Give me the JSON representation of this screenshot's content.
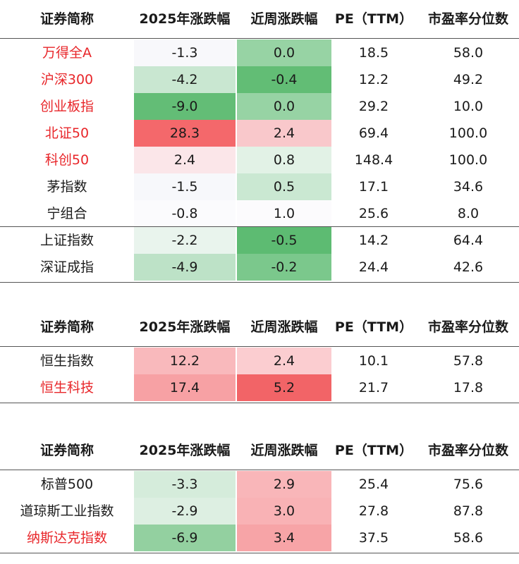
{
  "headers": [
    "证券简称",
    "2025年涨跌幅",
    "近周涨跌幅",
    "PE（TTM）",
    "市盈率分位数"
  ],
  "colors": {
    "red_text": "#e8262a",
    "neg_max": "#5dbb72",
    "pos_max": "#f26467",
    "neutral": "#fbfbfd"
  },
  "tables": [
    {
      "rows": [
        {
          "name": "万得全A",
          "red": true,
          "ytd": "-1.3",
          "wk": "0.0",
          "pe": "18.5",
          "pct": "58.0",
          "ytd_bg": "#f8f8fb",
          "wk_bg": "#97d3a4"
        },
        {
          "name": "沪深300",
          "red": true,
          "ytd": "-4.2",
          "wk": "-0.4",
          "pe": "12.2",
          "pct": "49.2",
          "ytd_bg": "#c9e7d1",
          "wk_bg": "#62bd75"
        },
        {
          "name": "创业板指",
          "red": true,
          "ytd": "-9.0",
          "wk": "0.0",
          "pe": "29.2",
          "pct": "10.0",
          "ytd_bg": "#63bd76",
          "wk_bg": "#97d3a4"
        },
        {
          "name": "北证50",
          "red": true,
          "ytd": "28.3",
          "wk": "2.4",
          "pe": "69.4",
          "pct": "100.0",
          "ytd_bg": "#f4686b",
          "wk_bg": "#f9c8cb"
        },
        {
          "name": "科创50",
          "red": true,
          "ytd": "2.4",
          "wk": "0.8",
          "pe": "148.4",
          "pct": "100.0",
          "ytd_bg": "#fbe6e9",
          "wk_bg": "#e2f2e6"
        },
        {
          "name": "茅指数",
          "red": false,
          "ytd": "-1.5",
          "wk": "0.5",
          "pe": "17.1",
          "pct": "34.6",
          "ytd_bg": "#f7f8fb",
          "wk_bg": "#cae8d2"
        },
        {
          "name": "宁组合",
          "red": false,
          "ytd": "-0.8",
          "wk": "1.0",
          "pe": "25.6",
          "pct": "8.0",
          "ytd_bg": "#fbfbfd",
          "wk_bg": "#fcfbfd"
        },
        {
          "name": "上证指数",
          "red": false,
          "ytd": "-2.2",
          "wk": "-0.5",
          "pe": "14.2",
          "pct": "64.4",
          "ytd_bg": "#e9f4ed",
          "wk_bg": "#5dbb72",
          "sep": true
        },
        {
          "name": "深证成指",
          "red": false,
          "ytd": "-4.9",
          "wk": "-0.2",
          "pe": "24.4",
          "pct": "42.6",
          "ytd_bg": "#bde2c7",
          "wk_bg": "#7bc88c"
        }
      ]
    },
    {
      "rows": [
        {
          "name": "恒生指数",
          "red": false,
          "ytd": "12.2",
          "wk": "2.4",
          "pe": "10.1",
          "pct": "57.8",
          "ytd_bg": "#f9b9bc",
          "wk_bg": "#fbcdd0"
        },
        {
          "name": "恒生科技",
          "red": true,
          "ytd": "17.4",
          "wk": "5.2",
          "pe": "21.7",
          "pct": "17.8",
          "ytd_bg": "#f7a1a4",
          "wk_bg": "#f26467"
        }
      ]
    },
    {
      "rows": [
        {
          "name": "标普500",
          "red": false,
          "ytd": "-3.3",
          "wk": "2.9",
          "pe": "25.4",
          "pct": "75.6",
          "ytd_bg": "#d5ecdb",
          "wk_bg": "#f9b6b9"
        },
        {
          "name": "道琼斯工业指数",
          "red": false,
          "ytd": "-2.9",
          "wk": "3.0",
          "pe": "27.8",
          "pct": "87.8",
          "ytd_bg": "#ddefe2",
          "wk_bg": "#f9b2b5"
        },
        {
          "name": "纳斯达克指数",
          "red": true,
          "ytd": "-6.9",
          "wk": "3.4",
          "pe": "37.5",
          "pct": "58.6",
          "ytd_bg": "#93d0a0",
          "wk_bg": "#f7a4a7"
        }
      ]
    }
  ],
  "chart_data": {
    "type": "table",
    "columns": [
      "证券简称",
      "2025年涨跌幅",
      "近周涨跌幅",
      "PE（TTM）",
      "市盈率分位数"
    ],
    "groups": [
      [
        [
          "万得全A",
          -1.3,
          0.0,
          18.5,
          58.0
        ],
        [
          "沪深300",
          -4.2,
          -0.4,
          12.2,
          49.2
        ],
        [
          "创业板指",
          -9.0,
          0.0,
          29.2,
          10.0
        ],
        [
          "北证50",
          28.3,
          2.4,
          69.4,
          100.0
        ],
        [
          "科创50",
          2.4,
          0.8,
          148.4,
          100.0
        ],
        [
          "茅指数",
          -1.5,
          0.5,
          17.1,
          34.6
        ],
        [
          "宁组合",
          -0.8,
          1.0,
          25.6,
          8.0
        ],
        [
          "上证指数",
          -2.2,
          -0.5,
          14.2,
          64.4
        ],
        [
          "深证成指",
          -4.9,
          -0.2,
          24.4,
          42.6
        ]
      ],
      [
        [
          "恒生指数",
          12.2,
          2.4,
          10.1,
          57.8
        ],
        [
          "恒生科技",
          17.4,
          5.2,
          21.7,
          17.8
        ]
      ],
      [
        [
          "标普500",
          -3.3,
          2.9,
          25.4,
          75.6
        ],
        [
          "道琼斯工业指数",
          -2.9,
          3.0,
          27.8,
          87.8
        ],
        [
          "纳斯达克指数",
          -6.9,
          3.4,
          37.5,
          58.6
        ]
      ]
    ],
    "heatmap_columns": [
      "2025年涨跌幅",
      "近周涨跌幅"
    ],
    "heatmap_scale": "green (negative) to red (positive)"
  }
}
